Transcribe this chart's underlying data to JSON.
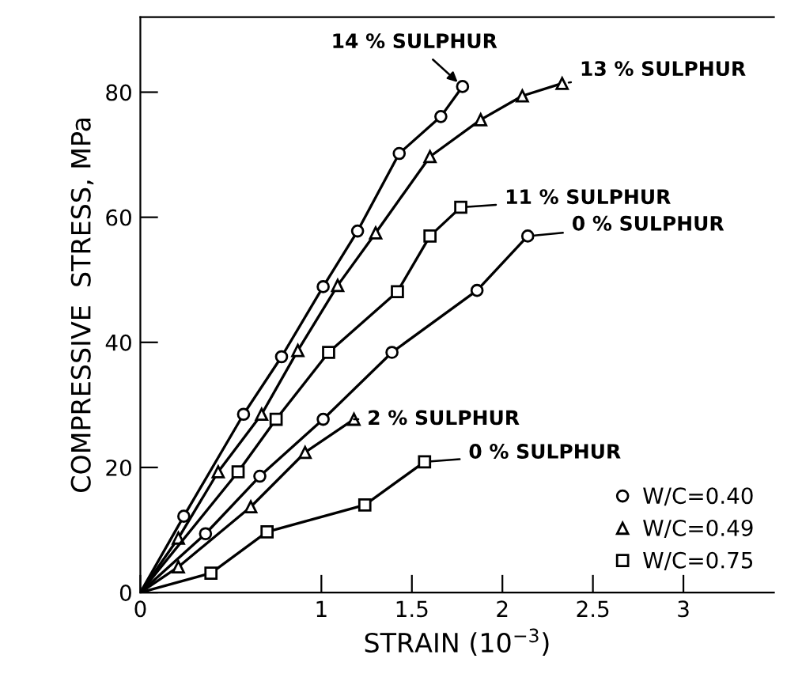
{
  "chart_data": {
    "type": "line",
    "xlabel": "STRAIN (10$^{−3}$)",
    "ylabel": "COMPRESSIVE  STRESS, MPa",
    "xlim": [
      0,
      3.5
    ],
    "ylim": [
      0,
      92
    ],
    "xticks": [
      0,
      1,
      1.5,
      2,
      2.5,
      3
    ],
    "yticks": [
      0,
      20,
      40,
      60,
      80
    ],
    "grid": false,
    "legend": "bottom right",
    "line_style": "solid",
    "series": [
      {
        "name": "W/C=0.40",
        "color": "#000000",
        "marker": "circle",
        "x": [
          0,
          0.24,
          0.57,
          0.78,
          1.01,
          1.2,
          1.43,
          1.66,
          1.78
        ],
        "values": [
          0,
          12.2,
          28.5,
          37.7,
          48.9,
          57.8,
          70.2,
          76.1,
          80.9
        ]
      },
      {
        "name": "W/C=0.49",
        "color": "#000000",
        "marker": "triangle",
        "x": [
          0,
          0.21,
          0.43,
          0.67,
          0.87,
          1.09,
          1.3,
          1.6,
          1.88,
          2.11,
          2.33
        ],
        "values": [
          0,
          8.7,
          19.3,
          28.5,
          38.7,
          49.1,
          57.5,
          69.7,
          75.6,
          79.4,
          81.4
        ]
      },
      {
        "name": "W/C=0.75",
        "color": "#000000",
        "marker": "square",
        "x": [
          0,
          0.54,
          0.75,
          1.04,
          1.42,
          1.6,
          1.77
        ],
        "values": [
          0,
          19.3,
          27.7,
          38.4,
          48.1,
          57.0,
          61.6
        ]
      },
      {
        "color": "#000000",
        "marker": "circle",
        "x": [
          0,
          0.36,
          0.66,
          1.01,
          1.39,
          1.86,
          2.14
        ],
        "values": [
          0,
          9.4,
          18.6,
          27.7,
          38.4,
          48.3,
          57.0
        ]
      },
      {
        "color": "#000000",
        "marker": "triangle",
        "x": [
          0,
          0.21,
          0.61,
          0.91,
          1.18
        ],
        "values": [
          0,
          4.1,
          13.7,
          22.4,
          27.7
        ]
      },
      {
        "color": "#000000",
        "marker": "square",
        "x": [
          0,
          0.39,
          0.7,
          1.24,
          1.57
        ],
        "values": [
          0,
          3.1,
          9.7,
          14.0,
          20.9
        ]
      }
    ],
    "annotations": [
      {
        "text": "14 % SULPHUR",
        "x": 1.78,
        "y": 80.9
      },
      {
        "text": "13 % SULPHUR",
        "x": 2.33,
        "y": 81.4
      },
      {
        "text": "11 % SULPHUR",
        "x": 1.77,
        "y": 61.6
      },
      {
        "text": "0 % SULPHUR",
        "x": 2.14,
        "y": 57.0
      },
      {
        "text": "2 % SULPHUR",
        "x": 1.18,
        "y": 27.7
      },
      {
        "text": "0 % SULPHUR",
        "x": 1.57,
        "y": 20.9
      }
    ]
  }
}
